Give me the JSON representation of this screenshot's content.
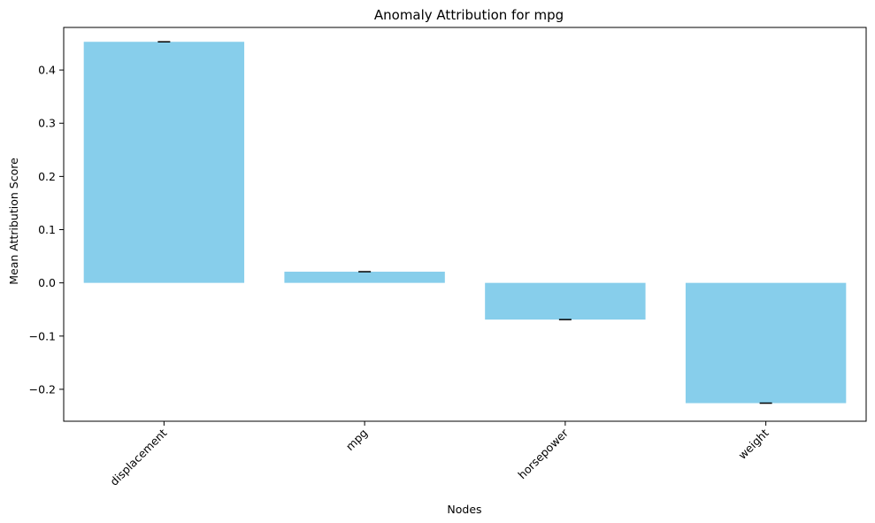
{
  "chart_data": {
    "type": "bar",
    "title": "Anomaly Attribution for mpg",
    "xlabel": "Nodes",
    "ylabel": "Mean Attribution Score",
    "categories": [
      "displacement",
      "mpg",
      "horsepower",
      "weight"
    ],
    "values": [
      0.453,
      0.021,
      -0.069,
      -0.226
    ],
    "error": [
      0.0,
      0.0,
      0.0,
      0.0
    ],
    "ylim": [
      -0.26,
      0.48
    ],
    "yticks": [
      -0.2,
      -0.1,
      0.0,
      0.1,
      0.2,
      0.3,
      0.4
    ],
    "ytick_labels": [
      "−0.2",
      "−0.1",
      "0.0",
      "0.1",
      "0.2",
      "0.3",
      "0.4"
    ],
    "xtick_rotation": 45,
    "grid": false,
    "bar_color": "#87ceeb",
    "error_color": "#000000"
  }
}
